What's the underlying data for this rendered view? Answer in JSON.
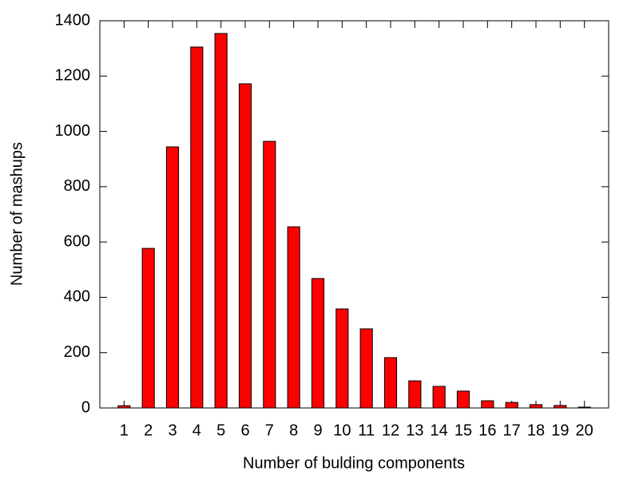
{
  "chart_data": {
    "type": "bar",
    "x_label": "Number of bulding components",
    "y_label": "Number of mashups",
    "x": [
      1,
      2,
      3,
      4,
      5,
      6,
      7,
      8,
      9,
      10,
      11,
      12,
      13,
      14,
      15,
      16,
      17,
      18,
      19,
      20
    ],
    "values": [
      8,
      577,
      944,
      1305,
      1354,
      1172,
      964,
      655,
      468,
      358,
      286,
      182,
      98,
      78,
      61,
      26,
      20,
      12,
      9,
      3
    ],
    "color": "#ff0000",
    "xlim": [
      0,
      21
    ],
    "xticks": [
      1,
      2,
      3,
      4,
      5,
      6,
      7,
      8,
      9,
      10,
      11,
      12,
      13,
      14,
      15,
      16,
      17,
      18,
      19,
      20
    ],
    "ylim": [
      0,
      1400
    ],
    "yticks": [
      0,
      200,
      400,
      600,
      800,
      1000,
      1200,
      1400
    ],
    "grid": false
  }
}
